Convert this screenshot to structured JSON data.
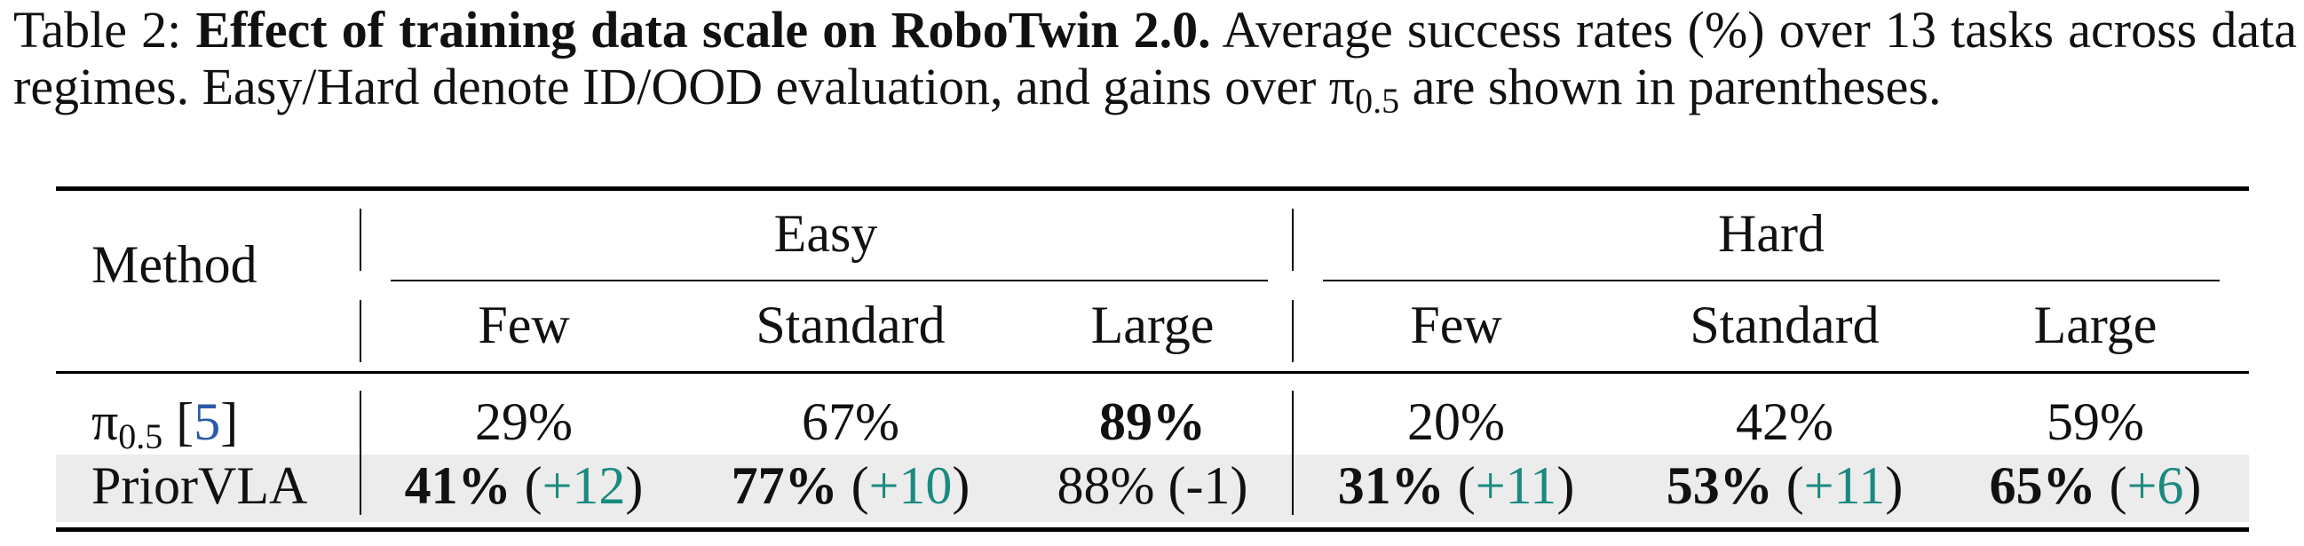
{
  "caption": {
    "label": "Table 2:",
    "title": "Effect of training data scale on RoboTwin 2.0.",
    "text_before_pi": "Average success rates (%) over 13 tasks across data regimes. Easy/Hard denote ID/OOD evaluation, and gains over ",
    "pi_symbol": "π",
    "pi_subscript": "0.5",
    "text_after_pi": " are shown in parentheses."
  },
  "table": {
    "method_header": "Method",
    "groups": [
      "Easy",
      "Hard"
    ],
    "subheaders": [
      "Few",
      "Standard",
      "Large",
      "Few",
      "Standard",
      "Large"
    ],
    "rows": [
      {
        "method_symbol": "π",
        "method_subscript": "0.5",
        "cite_open": "[",
        "cite": "5",
        "cite_close": "]",
        "cells": [
          {
            "value": "29%",
            "gain": "",
            "bold": false
          },
          {
            "value": "67%",
            "gain": "",
            "bold": false
          },
          {
            "value": "89%",
            "gain": "",
            "bold": true
          },
          {
            "value": "20%",
            "gain": "",
            "bold": false
          },
          {
            "value": "42%",
            "gain": "",
            "bold": false
          },
          {
            "value": "59%",
            "gain": "",
            "bold": false
          }
        ]
      },
      {
        "method": "PriorVLA",
        "highlighted": true,
        "cells": [
          {
            "value": "41%",
            "gain_open": "(",
            "gain": "+12",
            "gain_close": ")",
            "bold": true
          },
          {
            "value": "77%",
            "gain_open": "(",
            "gain": "+10",
            "gain_close": ")",
            "bold": true
          },
          {
            "value": "88%",
            "gain_open": "",
            "gain": "(-1)",
            "gain_close": "",
            "bold": false
          },
          {
            "value": "31%",
            "gain_open": "(",
            "gain": "+11",
            "gain_close": ")",
            "bold": true
          },
          {
            "value": "53%",
            "gain_open": "(",
            "gain": "+11",
            "gain_close": ")",
            "bold": true
          },
          {
            "value": "65%",
            "gain_open": "(",
            "gain": "+6",
            "gain_close": ")",
            "bold": true
          }
        ]
      }
    ],
    "gain_color": "#1a8a80",
    "cite_color": "#2a5aa8",
    "highlight_color": "#ececec"
  }
}
